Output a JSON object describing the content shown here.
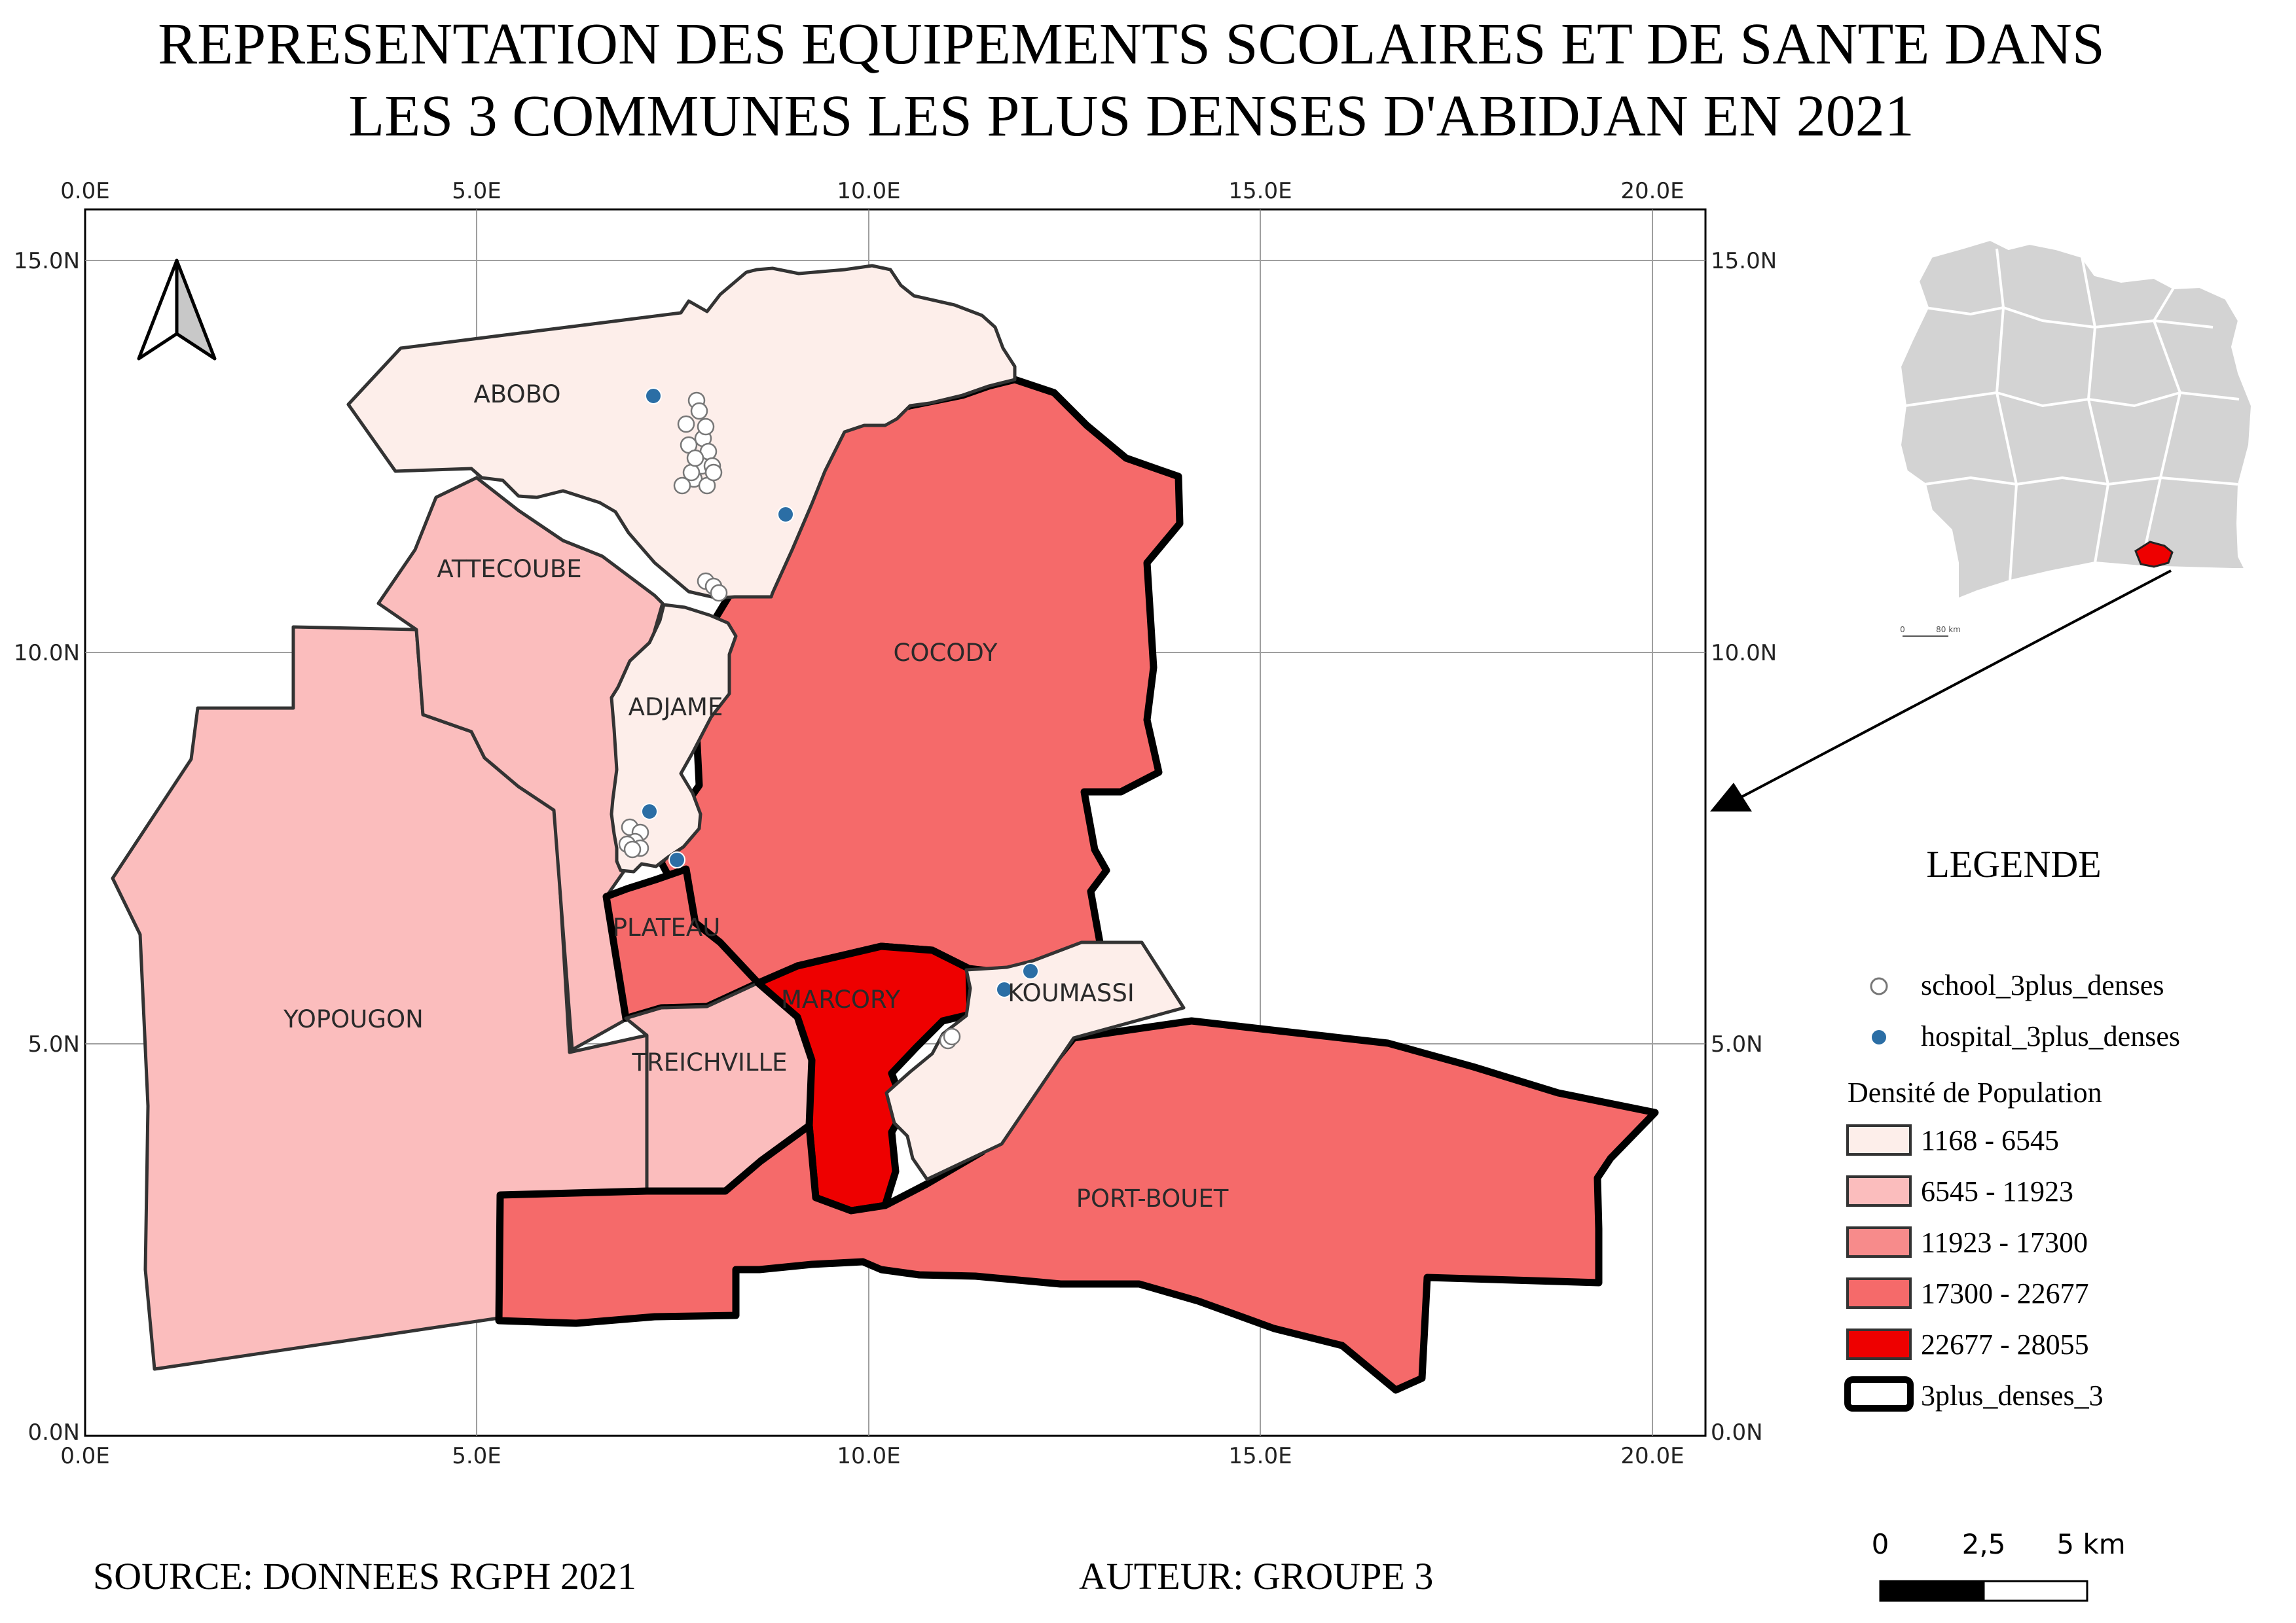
{
  "title": {
    "line1": "REPRESENTATION DES EQUIPEMENTS SCOLAIRES ET DE SANTE DANS",
    "line2": "LES 3 COMMUNES LES PLUS DENSES D'ABIDJAN EN 2021"
  },
  "grid": {
    "x_labels": [
      "0.0E",
      "5.0E",
      "10.0E",
      "15.0E",
      "20.0E"
    ],
    "y_labels": [
      "0.0N",
      "5.0N",
      "10.0N",
      "15.0N"
    ]
  },
  "communes": [
    {
      "name": "ABOBO",
      "class": 3,
      "highlighted": true
    },
    {
      "name": "ATTECOUBE",
      "class": 1,
      "highlighted": false
    },
    {
      "name": "ADJAME",
      "class": 4,
      "highlighted": true
    },
    {
      "name": "COCODY",
      "class": 0,
      "highlighted": false
    },
    {
      "name": "PLATEAU",
      "class": 0,
      "highlighted": false
    },
    {
      "name": "YOPOUGON",
      "class": 1,
      "highlighted": false
    },
    {
      "name": "MARCORY",
      "class": 2,
      "highlighted": false
    },
    {
      "name": "KOUMASSI",
      "class": 3,
      "highlighted": true
    },
    {
      "name": "TREICHVILLE",
      "class": 1,
      "highlighted": false
    },
    {
      "name": "PORT-BOUET",
      "class": 0,
      "highlighted": false
    }
  ],
  "legend": {
    "title": "LEGENDE",
    "school_label": "school_3plus_denses",
    "hospital_label": "hospital_3plus_denses",
    "density_title": "Densité de Population",
    "classes": [
      {
        "label": "1168 - 6545",
        "color": "#fdeeea"
      },
      {
        "label": "6545 - 11923",
        "color": "#fbbdbd"
      },
      {
        "label": "11923 - 17300",
        "color": "#f78b8b"
      },
      {
        "label": "17300 - 22677",
        "color": "#f56a6a"
      },
      {
        "label": "22677 - 28055",
        "color": "#ee0000"
      }
    ],
    "outline_label": "3plus_denses_3"
  },
  "colors": {
    "outline": "#333333",
    "hospital": "#2b6ea5",
    "school": "#ffffff",
    "inset_fill": "#d3d3d3",
    "inset_highlight": "#ee0000"
  },
  "scale": {
    "labels": [
      "0",
      "2,5",
      "5 km"
    ]
  },
  "inset": {
    "scale_labels": [
      "0",
      "80 km"
    ]
  },
  "footer": {
    "source": "SOURCE: DONNEES RGPH 2021",
    "author": "AUTEUR: GROUPE 3"
  }
}
